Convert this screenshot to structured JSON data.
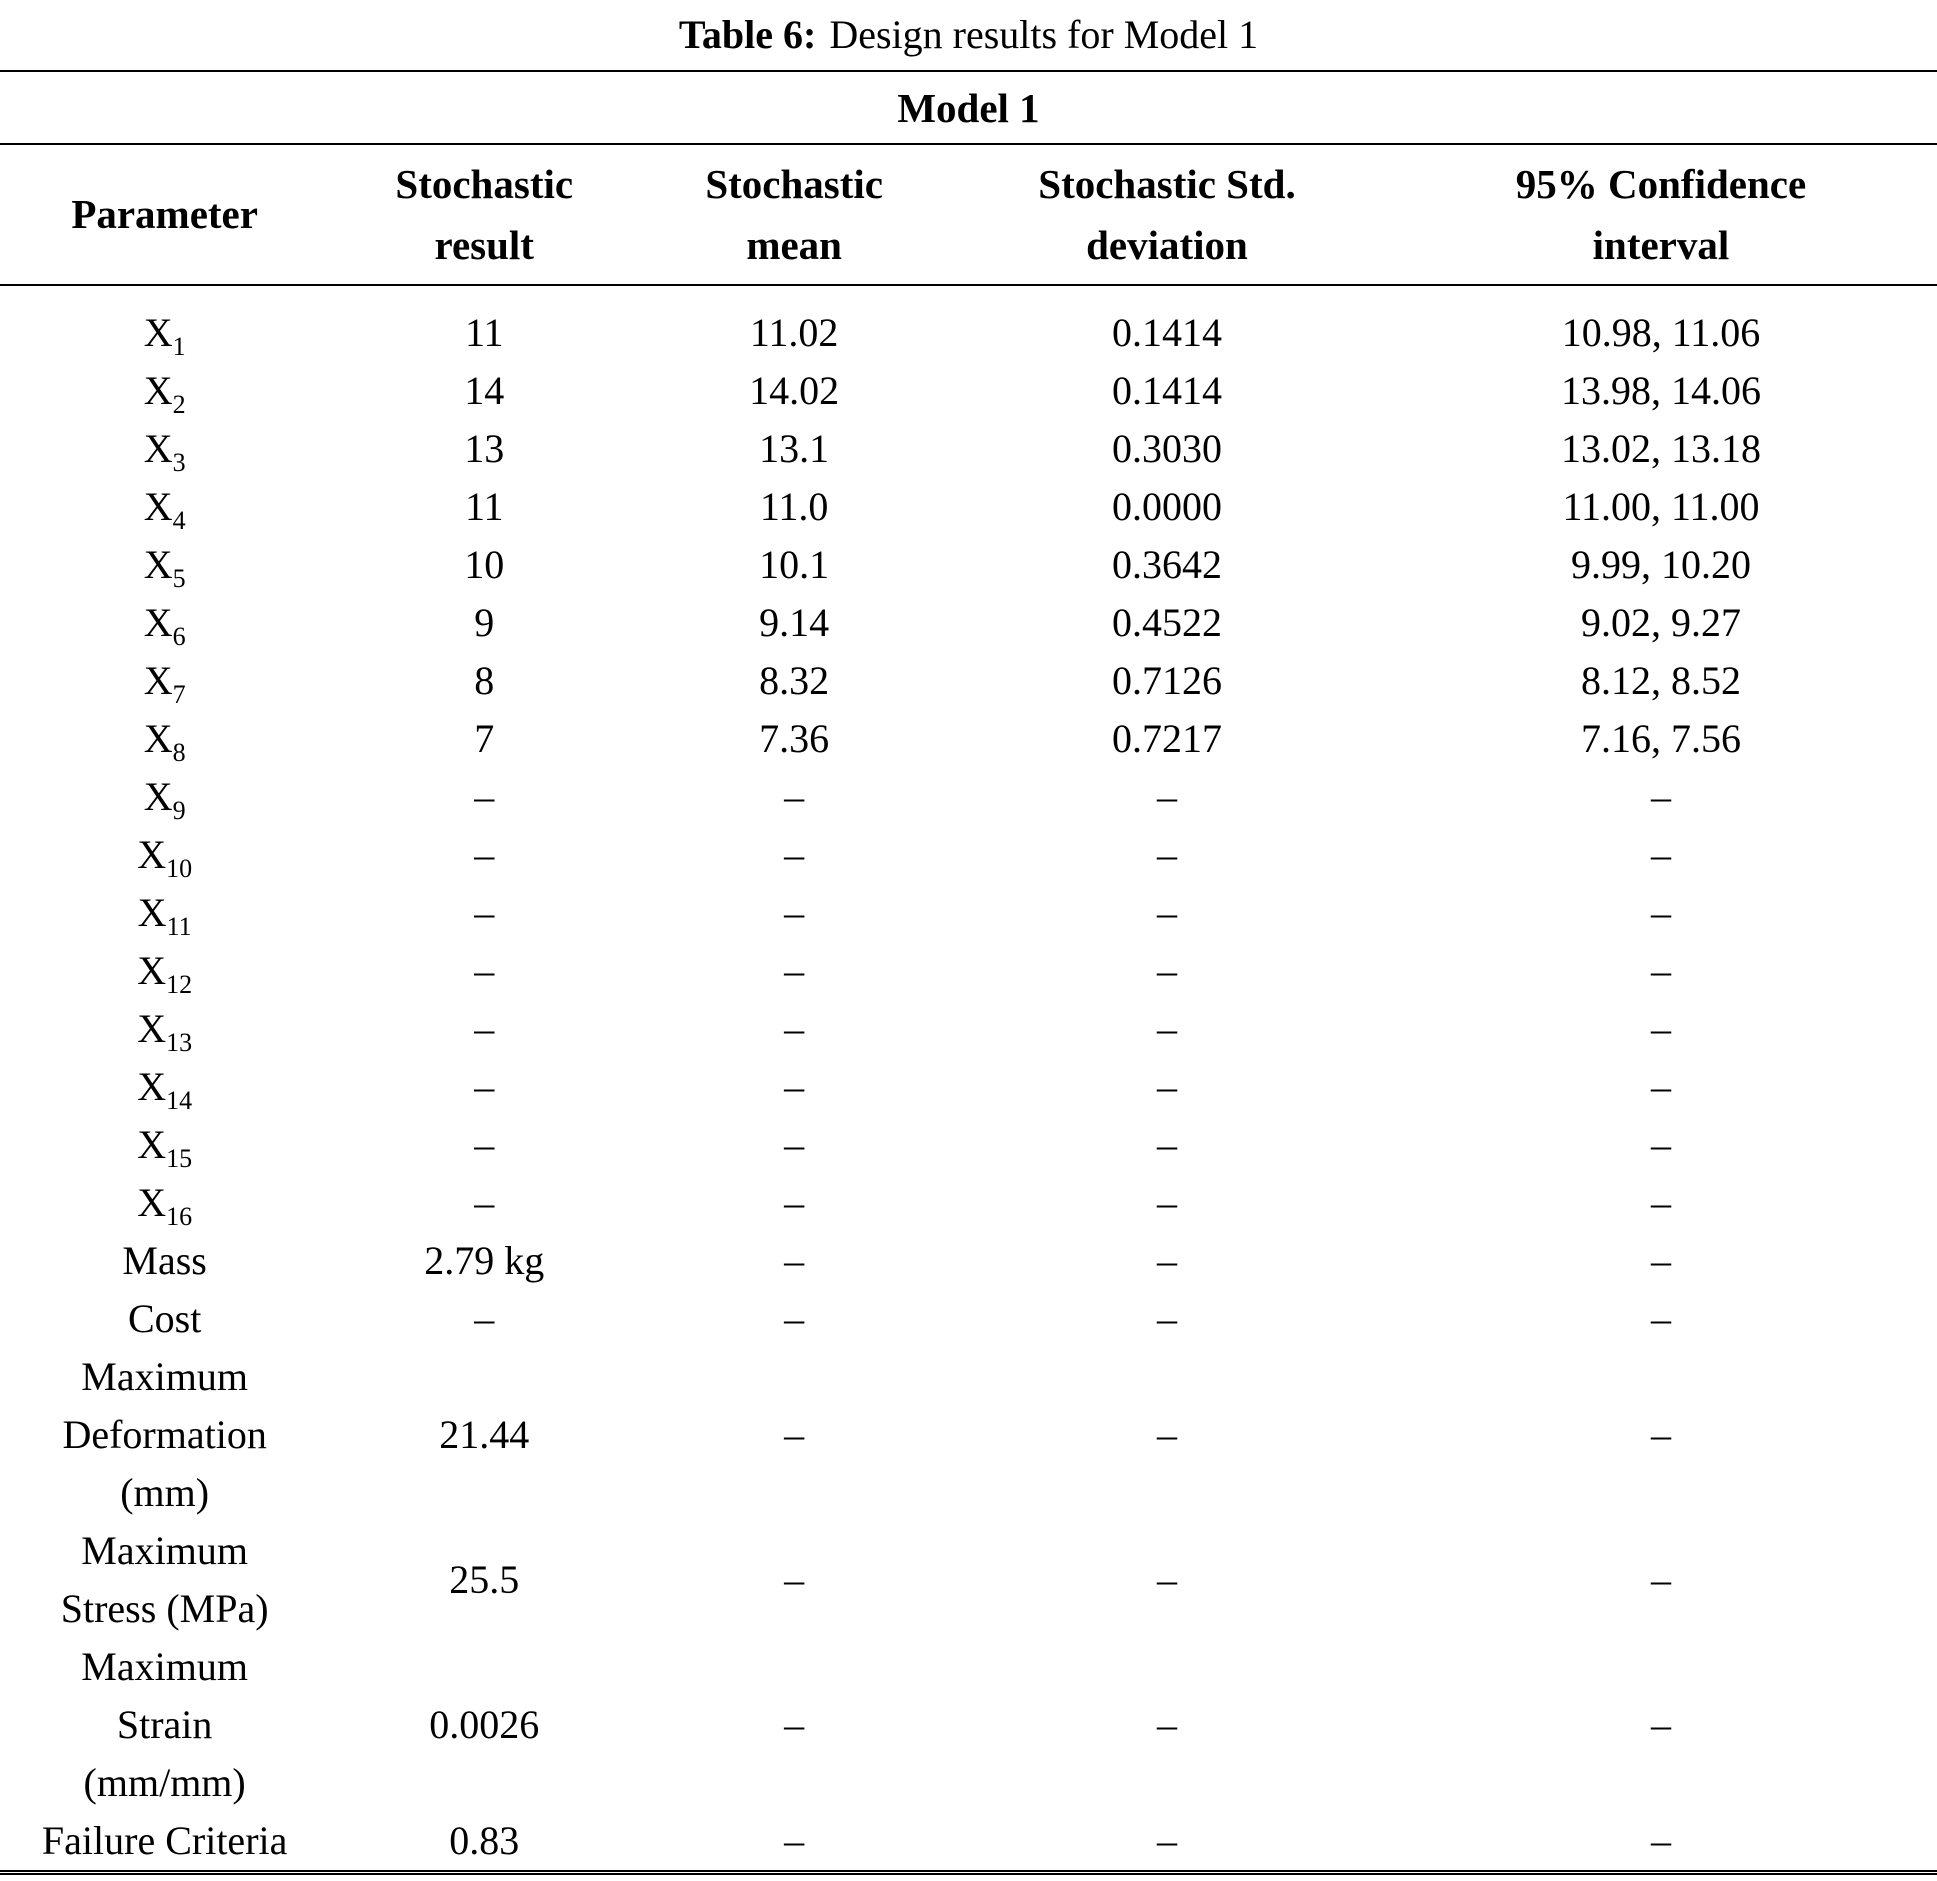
{
  "caption": {
    "label": "Table 6:",
    "text": "Design results for Model 1"
  },
  "table": {
    "group_header": "Model 1",
    "columns": [
      {
        "lines": [
          "Parameter"
        ]
      },
      {
        "lines": [
          "Stochastic",
          "result"
        ]
      },
      {
        "lines": [
          "Stochastic",
          "mean"
        ]
      },
      {
        "lines": [
          "Stochastic Std.",
          "deviation"
        ]
      },
      {
        "lines": [
          "95% Confidence",
          "interval"
        ]
      }
    ],
    "column_widths": [
      "17%",
      "16%",
      "16%",
      "22.5%",
      "28.5%"
    ],
    "rows": [
      {
        "param": {
          "base": "X",
          "sub": "1"
        },
        "values": [
          "11",
          "11.02",
          "0.1414",
          "10.98, 11.06"
        ]
      },
      {
        "param": {
          "base": "X",
          "sub": "2"
        },
        "values": [
          "14",
          "14.02",
          "0.1414",
          "13.98, 14.06"
        ]
      },
      {
        "param": {
          "base": "X",
          "sub": "3"
        },
        "values": [
          "13",
          "13.1",
          "0.3030",
          "13.02, 13.18"
        ]
      },
      {
        "param": {
          "base": "X",
          "sub": "4"
        },
        "values": [
          "11",
          "11.0",
          "0.0000",
          "11.00, 11.00"
        ]
      },
      {
        "param": {
          "base": "X",
          "sub": "5"
        },
        "values": [
          "10",
          "10.1",
          "0.3642",
          "9.99, 10.20"
        ]
      },
      {
        "param": {
          "base": "X",
          "sub": "6"
        },
        "values": [
          "9",
          "9.14",
          "0.4522",
          "9.02, 9.27"
        ]
      },
      {
        "param": {
          "base": "X",
          "sub": "7"
        },
        "values": [
          "8",
          "8.32",
          "0.7126",
          "8.12, 8.52"
        ]
      },
      {
        "param": {
          "base": "X",
          "sub": "8"
        },
        "values": [
          "7",
          "7.36",
          "0.7217",
          "7.16, 7.56"
        ]
      },
      {
        "param": {
          "base": "X",
          "sub": "9"
        },
        "values": [
          "–",
          "–",
          "–",
          "–"
        ]
      },
      {
        "param": {
          "base": "X",
          "sub": "10"
        },
        "values": [
          "–",
          "–",
          "–",
          "–"
        ]
      },
      {
        "param": {
          "base": "X",
          "sub": "11"
        },
        "values": [
          "–",
          "–",
          "–",
          "–"
        ]
      },
      {
        "param": {
          "base": "X",
          "sub": "12"
        },
        "values": [
          "–",
          "–",
          "–",
          "–"
        ]
      },
      {
        "param": {
          "base": "X",
          "sub": "13"
        },
        "values": [
          "–",
          "–",
          "–",
          "–"
        ]
      },
      {
        "param": {
          "base": "X",
          "sub": "14"
        },
        "values": [
          "–",
          "–",
          "–",
          "–"
        ]
      },
      {
        "param": {
          "base": "X",
          "sub": "15"
        },
        "values": [
          "–",
          "–",
          "–",
          "–"
        ]
      },
      {
        "param": {
          "base": "X",
          "sub": "16"
        },
        "values": [
          "–",
          "–",
          "–",
          "–"
        ]
      },
      {
        "param": {
          "lines": [
            "Mass"
          ]
        },
        "values": [
          "2.79 kg",
          "–",
          "–",
          "–"
        ]
      },
      {
        "param": {
          "lines": [
            "Cost"
          ]
        },
        "values": [
          "–",
          "–",
          "–",
          "–"
        ]
      },
      {
        "param": {
          "lines": [
            "Maximum",
            "Deformation",
            "(mm)"
          ]
        },
        "values": [
          "21.44",
          "–",
          "–",
          "–"
        ]
      },
      {
        "param": {
          "lines": [
            "Maximum",
            "Stress (MPa)"
          ]
        },
        "values": [
          "25.5",
          "–",
          "–",
          "–"
        ]
      },
      {
        "param": {
          "lines": [
            "Maximum",
            "Strain",
            "(mm/mm)"
          ]
        },
        "values": [
          "0.0026",
          "–",
          "–",
          "–"
        ]
      },
      {
        "param": {
          "lines": [
            "Failure Criteria"
          ]
        },
        "values": [
          "0.83",
          "–",
          "–",
          "–"
        ]
      }
    ]
  },
  "colors": {
    "text": "#000000",
    "background": "#ffffff",
    "rule": "#000000"
  }
}
